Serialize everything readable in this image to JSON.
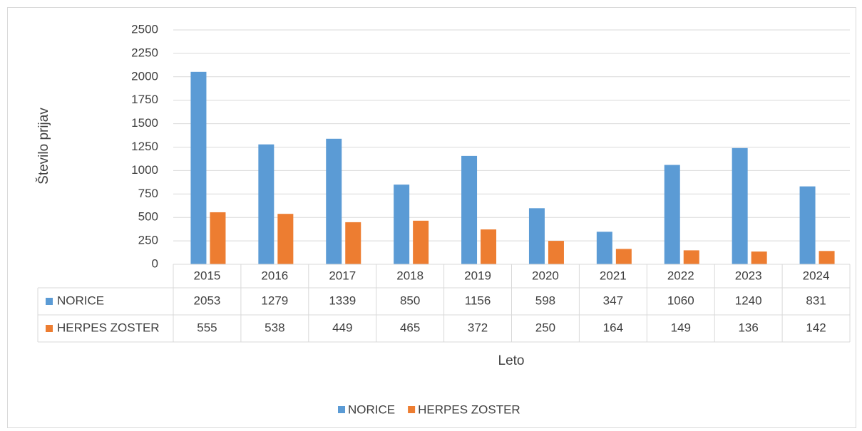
{
  "chart_data": {
    "type": "bar",
    "x_label": "Leto",
    "y_label": "Število prijav",
    "categories": [
      "2015",
      "2016",
      "2017",
      "2018",
      "2019",
      "2020",
      "2021",
      "2022",
      "2023",
      "2024"
    ],
    "series": [
      {
        "name": "NORICE",
        "color": "#5b9bd5",
        "values": [
          2053,
          1279,
          1339,
          850,
          1156,
          598,
          347,
          1060,
          1240,
          831
        ]
      },
      {
        "name": "HERPES ZOSTER",
        "color": "#ed7d31",
        "values": [
          555,
          538,
          449,
          465,
          372,
          250,
          164,
          149,
          136,
          142
        ]
      }
    ],
    "ylim": [
      0,
      2500
    ],
    "yticks": [
      0,
      250,
      500,
      750,
      1000,
      1250,
      1500,
      1750,
      2000,
      2250,
      2500
    ],
    "grid": true,
    "legend": "bottom",
    "data_table": true
  }
}
